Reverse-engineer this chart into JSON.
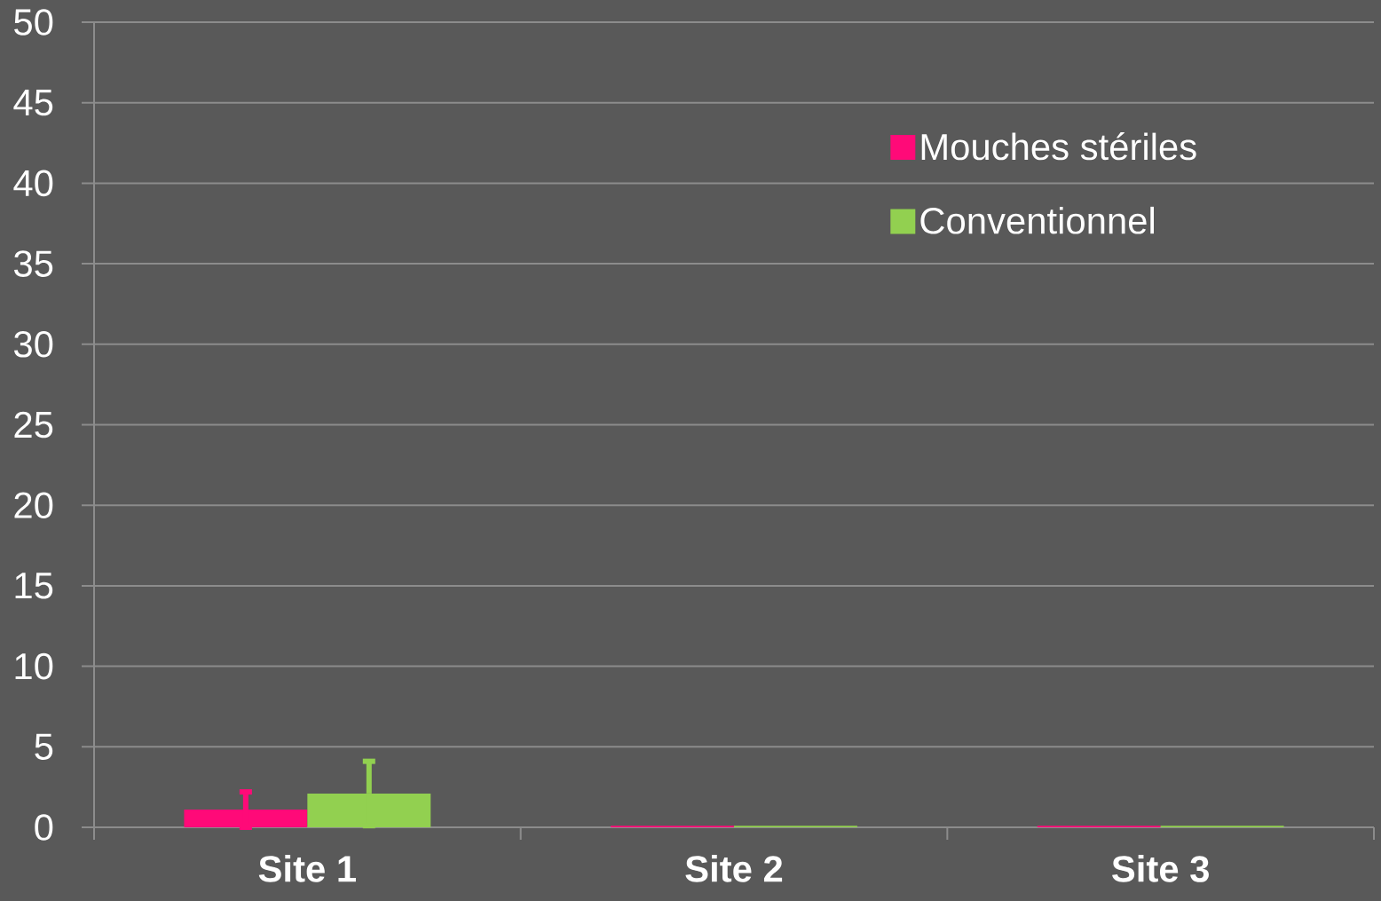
{
  "chart_data": {
    "type": "bar",
    "categories": [
      "Site 1",
      "Site 2",
      "Site 3"
    ],
    "series": [
      {
        "name": "Mouches stériles",
        "color": "#ff0a78",
        "values": [
          1.1,
          0.1,
          0.1
        ],
        "errors": [
          1.1,
          null,
          null
        ]
      },
      {
        "name": "Conventionnel",
        "color": "#92d050",
        "values": [
          2.1,
          0.1,
          0.1
        ],
        "errors": [
          2.0,
          null,
          null
        ]
      }
    ],
    "ylim": [
      0,
      50
    ],
    "yticks": [
      0,
      5,
      10,
      15,
      20,
      25,
      30,
      35,
      40,
      45,
      50
    ],
    "grid": "y",
    "legend": "top right"
  }
}
